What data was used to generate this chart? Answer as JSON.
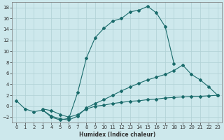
{
  "xlabel": "Humidex (Indice chaleur)",
  "bg_color": "#cde8ec",
  "grid_color": "#b0d0d4",
  "line_color": "#1a6b6b",
  "ylim": [
    -3,
    19
  ],
  "xlim": [
    -0.5,
    23.5
  ],
  "yticks": [
    -2,
    0,
    2,
    4,
    6,
    8,
    10,
    12,
    14,
    16,
    18
  ],
  "xticks": [
    0,
    1,
    2,
    3,
    4,
    5,
    6,
    7,
    8,
    9,
    10,
    11,
    12,
    13,
    14,
    15,
    16,
    17,
    18,
    19,
    20,
    21,
    22,
    23
  ],
  "curve1_x": [
    0,
    1,
    2,
    3,
    4,
    5,
    6,
    7,
    8,
    9,
    10,
    11,
    12,
    13,
    14,
    15,
    16,
    17,
    18
  ],
  "curve1_y": [
    1.0,
    -0.5,
    -1.0,
    -0.7,
    -2.0,
    -2.5,
    -2.2,
    2.5,
    8.8,
    12.5,
    14.2,
    15.5,
    16.0,
    17.2,
    17.5,
    18.2,
    17.0,
    14.5,
    7.8
  ],
  "curve2_x": [
    3,
    4,
    5,
    6,
    7,
    8,
    9,
    10,
    11,
    12,
    13,
    14,
    15,
    16,
    17,
    18,
    19,
    20,
    21,
    22,
    23
  ],
  "curve2_y": [
    -0.7,
    -1.8,
    -2.3,
    -2.5,
    -1.8,
    -0.3,
    0.5,
    1.2,
    2.0,
    2.8,
    3.5,
    4.2,
    4.8,
    5.3,
    5.8,
    6.5,
    7.5,
    5.8,
    4.8,
    3.5,
    2.0
  ],
  "curve3_x": [
    3,
    4,
    5,
    6,
    7,
    8,
    9,
    10,
    11,
    12,
    13,
    14,
    15,
    16,
    17,
    18,
    19,
    20,
    21,
    22,
    23
  ],
  "curve3_y": [
    -0.5,
    -0.8,
    -1.5,
    -2.0,
    -1.5,
    -0.5,
    0.0,
    0.2,
    0.5,
    0.7,
    0.9,
    1.0,
    1.2,
    1.3,
    1.5,
    1.6,
    1.7,
    1.8,
    1.8,
    1.9,
    2.0
  ]
}
